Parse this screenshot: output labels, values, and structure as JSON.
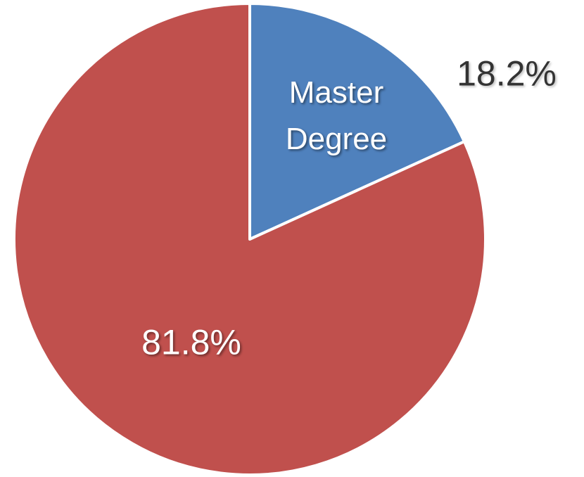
{
  "chart_data": {
    "type": "pie",
    "categories": [
      "Master Degree",
      null
    ],
    "values": [
      18.2,
      81.8
    ],
    "value_labels": [
      "18.2%",
      "81.8%"
    ],
    "colors": [
      "#4f81bd",
      "#c0504d"
    ]
  }
}
